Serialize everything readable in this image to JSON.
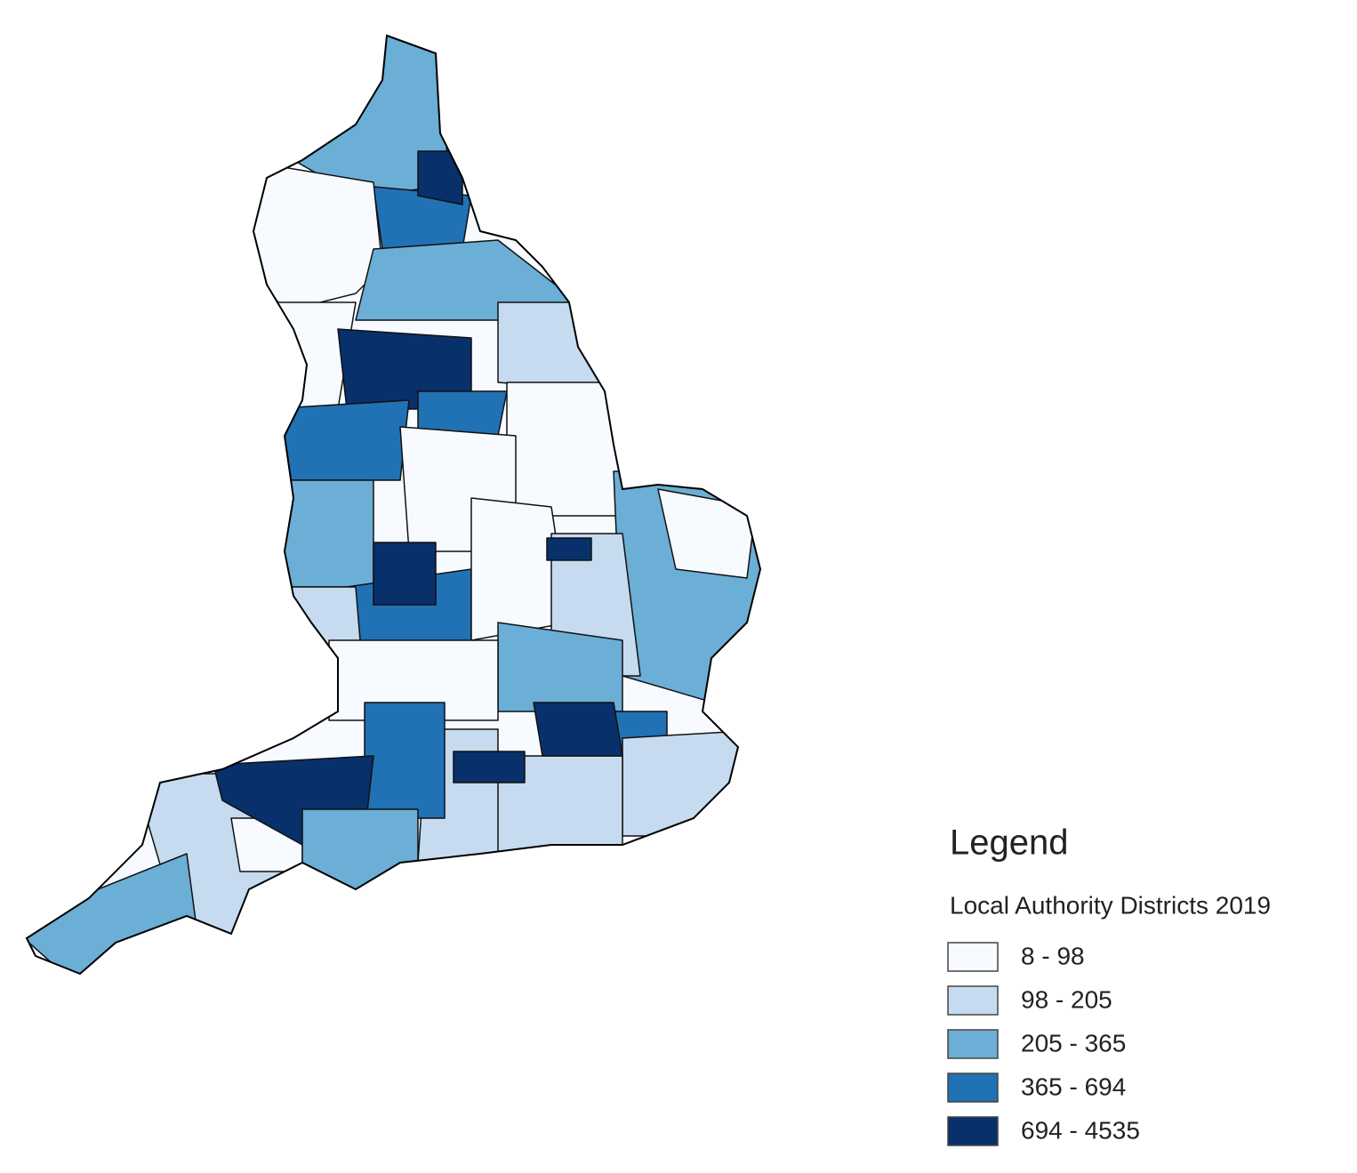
{
  "legend": {
    "title": "Legend",
    "subtitle": "Local Authority Districts 2019",
    "classes": [
      {
        "label": "8 - 98",
        "color": "#f7fbff"
      },
      {
        "label": "98 - 205",
        "color": "#c6dbef"
      },
      {
        "label": "205 - 365",
        "color": "#6baed6"
      },
      {
        "label": "365 - 694",
        "color": "#2171b5"
      },
      {
        "label": "694 - 4535",
        "color": "#08306b"
      }
    ]
  }
}
